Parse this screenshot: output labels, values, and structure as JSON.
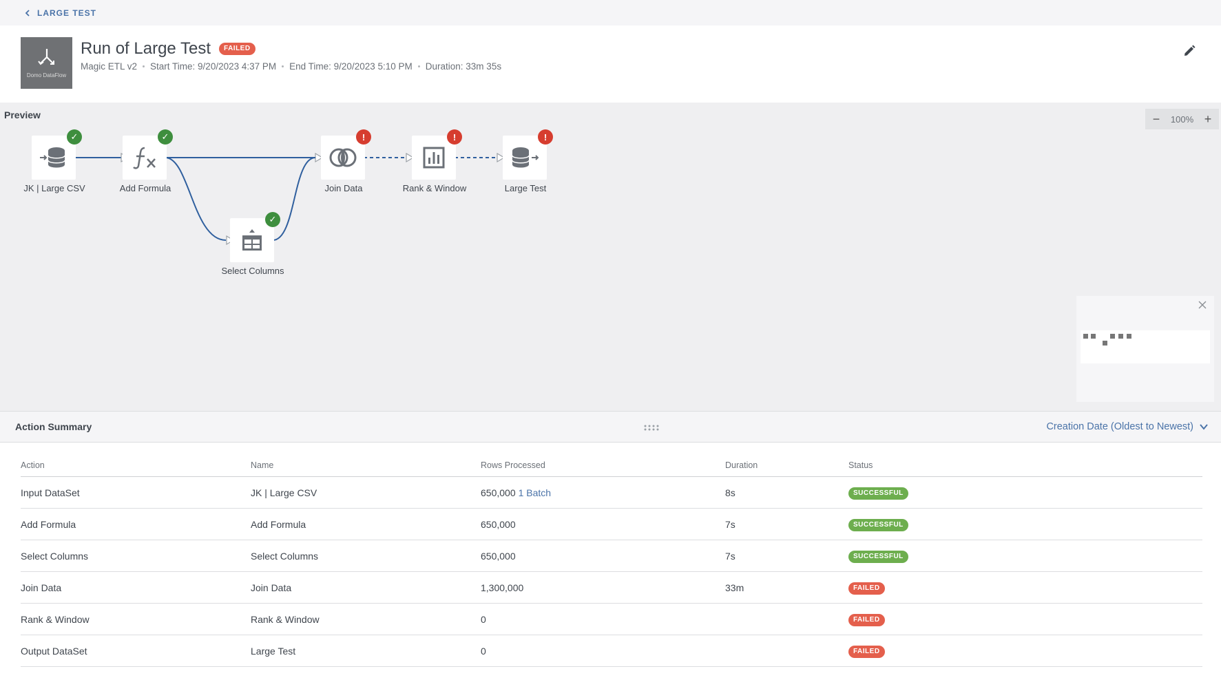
{
  "breadcrumb": {
    "label": "LARGE TEST"
  },
  "header": {
    "thumb_label": "Domo DataFlow",
    "title": "Run of Large Test",
    "status_badge": "FAILED",
    "meta": {
      "type": "Magic ETL v2",
      "start": "Start Time: 9/20/2023 4:37 PM",
      "end": "End Time: 9/20/2023 5:10 PM",
      "duration": "Duration: 33m 35s"
    }
  },
  "canvas": {
    "preview_label": "Preview",
    "zoom": {
      "minus": "−",
      "value": "100%",
      "plus": "+"
    },
    "nodes": [
      {
        "label": "JK | Large CSV",
        "icon": "input-dataset-icon",
        "status": "ok"
      },
      {
        "label": "Add Formula",
        "icon": "formula-icon",
        "status": "ok"
      },
      {
        "label": "Select Columns",
        "icon": "select-columns-icon",
        "status": "ok"
      },
      {
        "label": "Join Data",
        "icon": "join-icon",
        "status": "err"
      },
      {
        "label": "Rank & Window",
        "icon": "rank-window-icon",
        "status": "err"
      },
      {
        "label": "Large Test",
        "icon": "output-dataset-icon",
        "status": "err"
      }
    ],
    "status_marks": {
      "ok": "✓",
      "err": "!"
    }
  },
  "summary": {
    "title": "Action Summary",
    "sort_label": "Creation Date (Oldest to Newest)",
    "columns": [
      "Action",
      "Name",
      "Rows Processed",
      "Duration",
      "Status"
    ],
    "rows": [
      {
        "action": "Input DataSet",
        "name": "JK | Large CSV",
        "rows": "650,000",
        "batch": "1 Batch",
        "duration": "8s",
        "status": "SUCCESSFUL"
      },
      {
        "action": "Add Formula",
        "name": "Add Formula",
        "rows": "650,000",
        "batch": "",
        "duration": "7s",
        "status": "SUCCESSFUL"
      },
      {
        "action": "Select Columns",
        "name": "Select Columns",
        "rows": "650,000",
        "batch": "",
        "duration": "7s",
        "status": "SUCCESSFUL"
      },
      {
        "action": "Join Data",
        "name": "Join Data",
        "rows": "1,300,000",
        "batch": "",
        "duration": "33m",
        "status": "FAILED"
      },
      {
        "action": "Rank & Window",
        "name": "Rank & Window",
        "rows": "0",
        "batch": "",
        "duration": "",
        "status": "FAILED"
      },
      {
        "action": "Output DataSet",
        "name": "Large Test",
        "rows": "0",
        "batch": "",
        "duration": "",
        "status": "FAILED"
      }
    ]
  },
  "colors": {
    "accent": "#4a73a8",
    "success": "#6dae4e",
    "failed": "#e45f4c",
    "flow_line": "#2f5f9e"
  }
}
